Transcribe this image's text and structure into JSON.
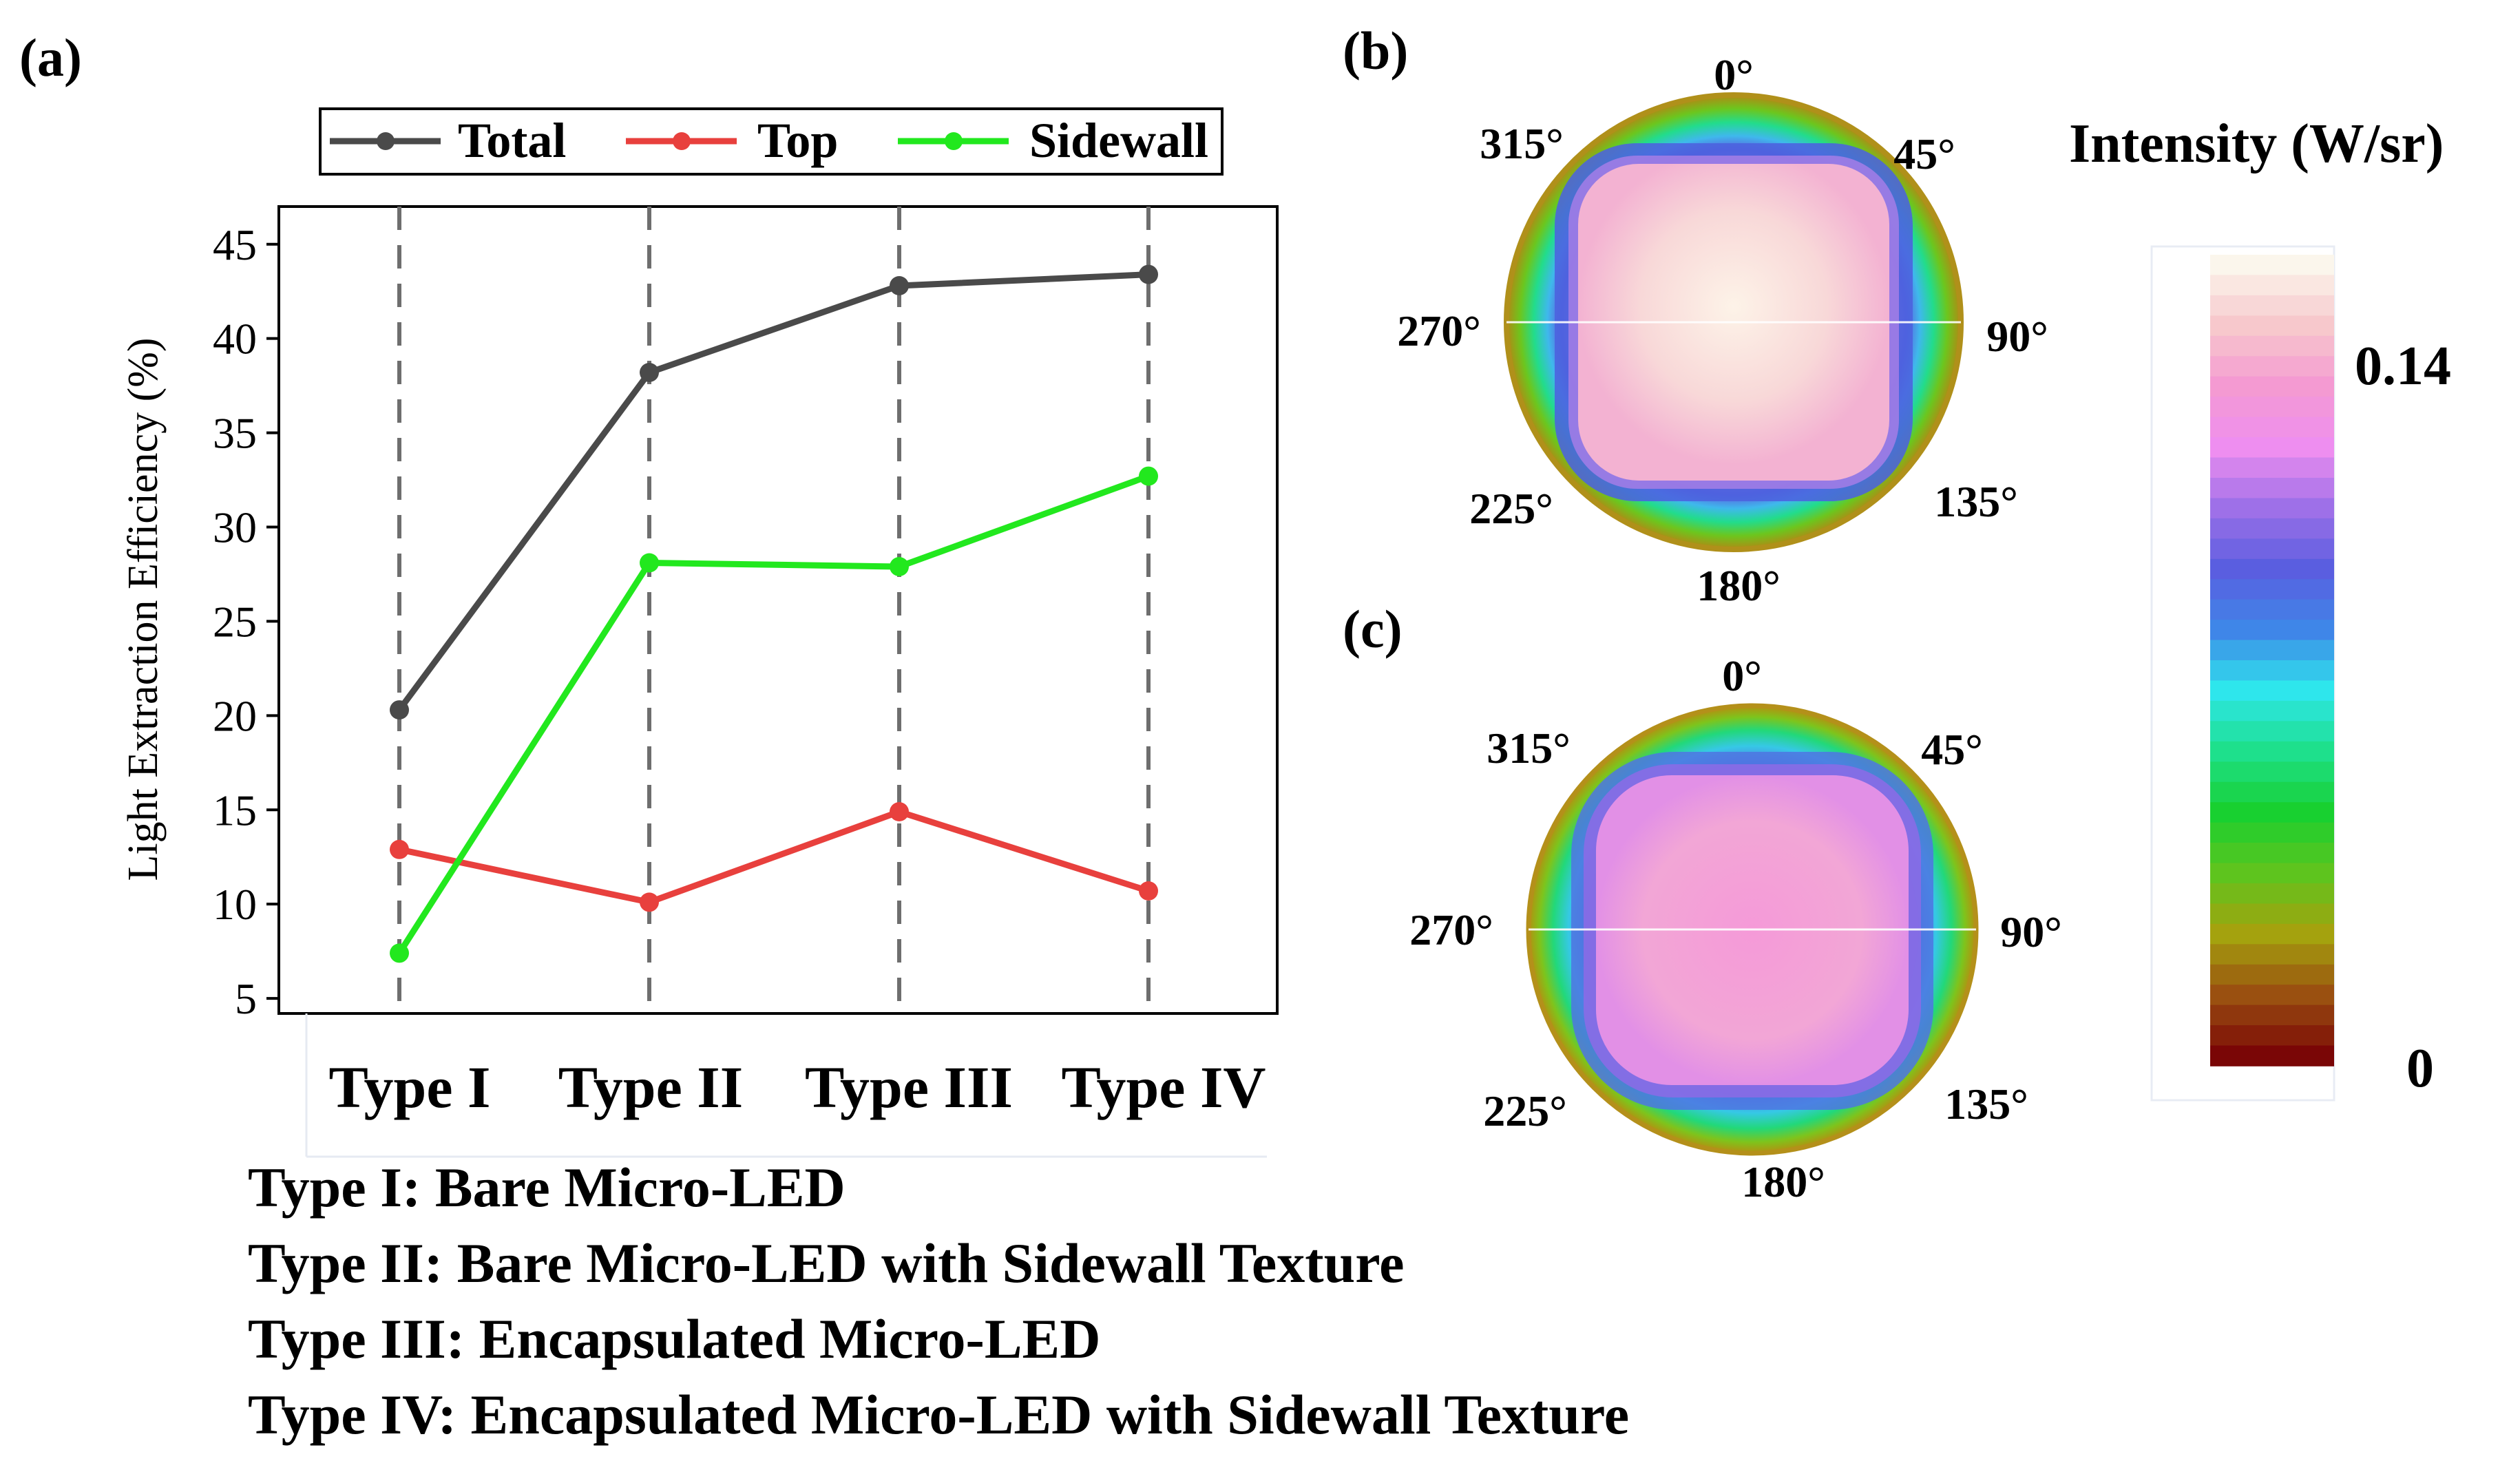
{
  "panel_labels": {
    "a": "(a)",
    "b": "(b)",
    "c": "(c)"
  },
  "chart_data": [
    {
      "type": "line",
      "panel": "(a)",
      "title": "",
      "xlabel": "",
      "ylabel": "Light Extraction Efficiency (%)",
      "categories": [
        "Type I",
        "Type II",
        "Type III",
        "Type IV"
      ],
      "ylim": [
        4.2,
        47.0
      ],
      "yticks": [
        5,
        10,
        15,
        20,
        25,
        30,
        35,
        40,
        45
      ],
      "grid": "dashed vertical lines at each category",
      "legend_position": "top",
      "series": [
        {
          "name": "Total",
          "color": "#4a4a4a",
          "values": [
            20.3,
            38.2,
            42.8,
            43.4
          ]
        },
        {
          "name": "Top",
          "color": "#e8403d",
          "values": [
            12.9,
            10.1,
            14.9,
            10.7
          ]
        },
        {
          "name": "Sidewall",
          "color": "#22e81e",
          "values": [
            7.4,
            28.1,
            27.9,
            32.7
          ]
        }
      ]
    },
    {
      "type": "heatmap",
      "panel": "(b)",
      "kind": "polar far-field intensity map",
      "angle_labels": [
        "0°",
        "45°",
        "90°",
        "135°",
        "180°",
        "225°",
        "270°",
        "315°"
      ],
      "colorbar_title": "Intensity (W/sr)",
      "colorbar_max_label": "0.14",
      "colorbar_min_label": "0"
    },
    {
      "type": "heatmap",
      "panel": "(c)",
      "kind": "polar far-field intensity map",
      "angle_labels": [
        "0°",
        "45°",
        "90°",
        "135°",
        "180°",
        "225°",
        "270°",
        "315°"
      ],
      "colorbar_title": "Intensity (W/sr)",
      "colorbar_max_label": "0.14",
      "colorbar_min_label": "0"
    }
  ],
  "colorbar": {
    "title": "Intensity (W/sr)",
    "max_label": "0.14",
    "min_label": "0",
    "stops": [
      "#fbf6ec",
      "#f7c8cc",
      "#f49ad2",
      "#ee8ef0",
      "#9e70e8",
      "#5a5ee0",
      "#3f86e8",
      "#2ee6ec",
      "#1ee08c",
      "#18d030",
      "#5ec41e",
      "#a4a20e",
      "#9a5010",
      "#7a0606"
    ]
  },
  "captions": [
    "Type I: Bare Micro-LED",
    "Type II: Bare Micro-LED with Sidewall Texture",
    "Type III: Encapsulated Micro-LED",
    "Type IV: Encapsulated Micro-LED with Sidewall Texture"
  ]
}
